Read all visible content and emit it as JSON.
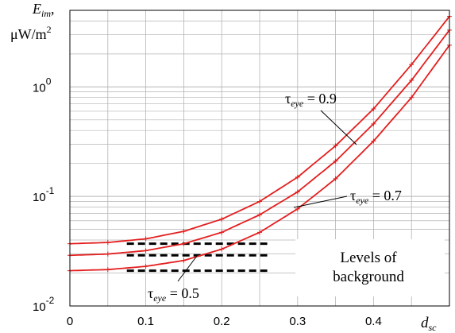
{
  "chart_data": {
    "type": "line",
    "xlabel_main": "d",
    "xlabel_sub": "sc",
    "ylabel_line1_main": "E",
    "ylabel_line1_sub": "im",
    "ylabel_line1_suffix": ",",
    "ylabel_line2": "μW/m",
    "ylabel_line2_sup": "2",
    "y_scale": "log",
    "xlim": [
      0,
      0.5
    ],
    "ylim": [
      0.01,
      5
    ],
    "grid": true,
    "x_ticks": [
      {
        "value": 0,
        "label": "0"
      },
      {
        "value": 0.1,
        "label": "0.1"
      },
      {
        "value": 0.2,
        "label": "0.2"
      },
      {
        "value": 0.3,
        "label": "0.3"
      },
      {
        "value": 0.4,
        "label": "0.4"
      }
    ],
    "y_ticks": [
      {
        "value": 0.01,
        "base": "10",
        "exp": "-2"
      },
      {
        "value": 0.1,
        "base": "10",
        "exp": "-1"
      },
      {
        "value": 1,
        "base": "10",
        "exp": "0"
      }
    ],
    "x": [
      0,
      0.05,
      0.1,
      0.15,
      0.2,
      0.25,
      0.3,
      0.35,
      0.4,
      0.45,
      0.5
    ],
    "series": [
      {
        "values": [
          0.037,
          0.038,
          0.041,
          0.048,
          0.062,
          0.09,
          0.15,
          0.29,
          0.63,
          1.6,
          4.4
        ]
      },
      {
        "values": [
          0.029,
          0.0298,
          0.032,
          0.037,
          0.047,
          0.068,
          0.11,
          0.21,
          0.46,
          1.15,
          3.3
        ]
      },
      {
        "values": [
          0.021,
          0.0215,
          0.023,
          0.026,
          0.033,
          0.047,
          0.077,
          0.145,
          0.32,
          0.8,
          2.4
        ]
      }
    ],
    "background_levels": {
      "x_range": [
        0.075,
        0.26
      ],
      "values": [
        0.037,
        0.029,
        0.021
      ]
    },
    "colors": {
      "curve": "#e41e1e",
      "background": "#000000",
      "grid": "#b4b4b4"
    },
    "annotations": [
      {
        "tau": "τ",
        "sub": "eye",
        "rest": " = 0.9",
        "points_to": 0
      },
      {
        "tau": "τ",
        "sub": "eye",
        "rest": " = 0.7",
        "points_to": 1
      },
      {
        "tau": "τ",
        "sub": "eye",
        "rest": " = 0.5",
        "points_to": 2
      }
    ],
    "background_label_line1": "Levels of",
    "background_label_line2": "background"
  }
}
